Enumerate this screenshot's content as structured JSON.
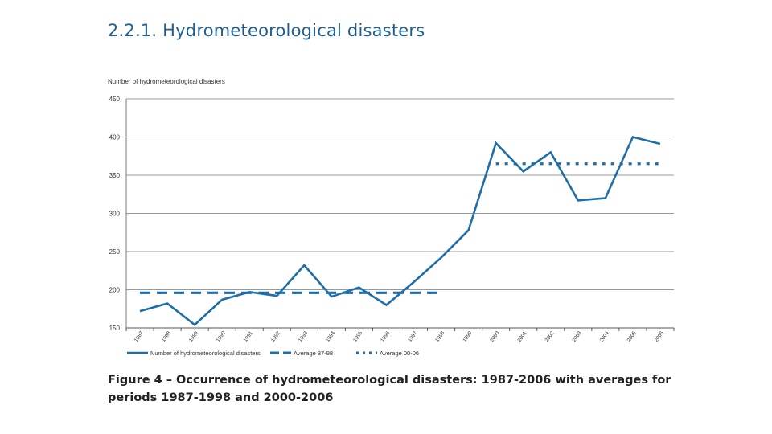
{
  "page": {
    "section_title": "2.2.1.  Hydrometeorological disasters",
    "caption": "Figure 4 – Occurrence of hydrometeorological disasters: 1987-2006 with averages for periods 1987-1998 and 2000-2006"
  },
  "chart_data": {
    "type": "line",
    "ylabel": "Number of hydrometeorological disasters",
    "xlabel": "",
    "ylim": [
      150,
      450
    ],
    "yticks": [
      150,
      200,
      250,
      300,
      350,
      400,
      450
    ],
    "grid": true,
    "legend_position": "bottom",
    "categories": [
      "1987",
      "1988",
      "1989",
      "1990",
      "1991",
      "1992",
      "1993",
      "1994",
      "1995",
      "1996",
      "1997",
      "1998",
      "1999",
      "2000",
      "2001",
      "2002",
      "2003",
      "2004",
      "2005",
      "2006"
    ],
    "series": [
      {
        "name": "Number of hydrometeorological disasters",
        "style": "solid",
        "color": "#1f6ea8",
        "values": [
          172,
          182,
          154,
          187,
          197,
          192,
          232,
          191,
          203,
          180,
          210,
          242,
          278,
          392,
          355,
          380,
          317,
          320,
          400,
          391
        ]
      },
      {
        "name": "Average 87-98",
        "style": "dashed",
        "color": "#1f6ea8",
        "x_range": [
          "1987",
          "1998"
        ],
        "value": 196
      },
      {
        "name": "Average 00-06",
        "style": "dotted",
        "color": "#1f6ea8",
        "x_range": [
          "2000",
          "2006"
        ],
        "value": 365
      }
    ]
  }
}
